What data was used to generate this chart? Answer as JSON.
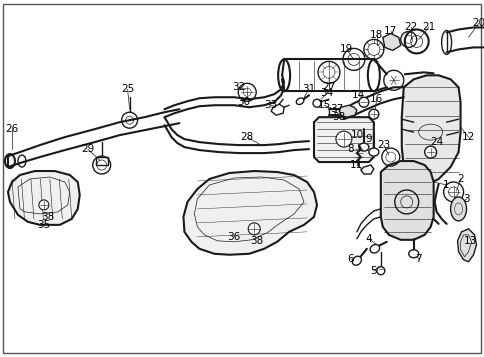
{
  "bg_color": "#ffffff",
  "border_color": "#000000",
  "fig_width": 4.85,
  "fig_height": 3.57,
  "dpi": 100,
  "image_data": "parts_diagram"
}
